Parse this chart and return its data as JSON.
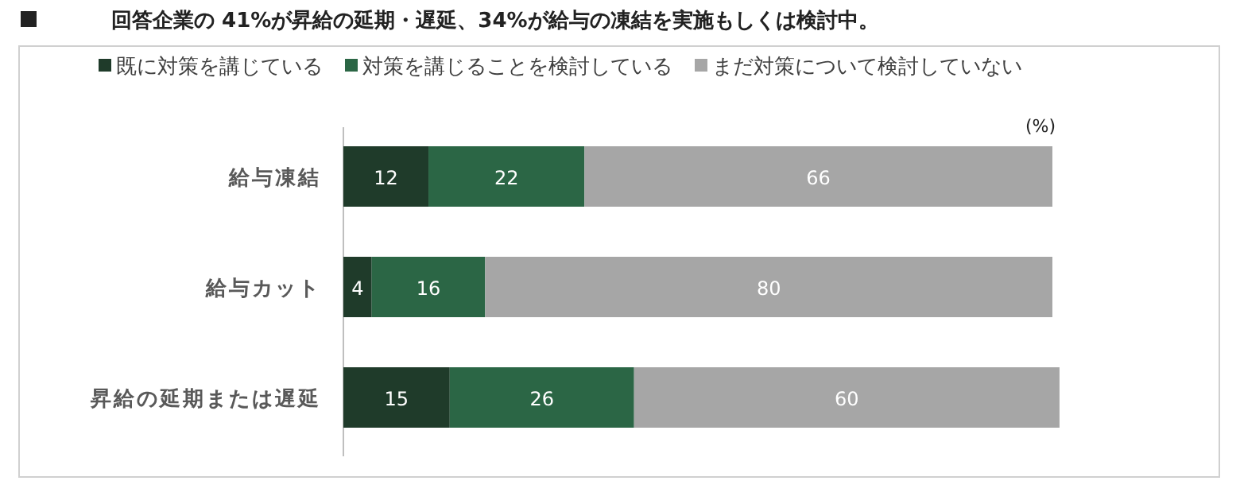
{
  "chart_data": {
    "type": "bar",
    "orientation": "horizontal",
    "stacked": true,
    "data_labels": true,
    "legend": "top",
    "title": "回答企業の 41%が昇給の延期・遅延、34%が給与の凍結を実施もしくは検討中。",
    "annotations": [
      "(%)"
    ],
    "categories": [
      "給与凍結",
      "給与カット",
      "昇給の延期または遅延"
    ],
    "series": [
      {
        "name": "既に対策を講じている",
        "color": "#1f3b2a",
        "values": [
          12,
          4,
          15
        ]
      },
      {
        "name": "対策を講じることを検討している",
        "color": "#2b6645",
        "values": [
          22,
          16,
          26
        ]
      },
      {
        "name": "まだ対策について検討していない",
        "color": "#a6a6a6",
        "values": [
          66,
          80,
          60
        ]
      }
    ]
  }
}
